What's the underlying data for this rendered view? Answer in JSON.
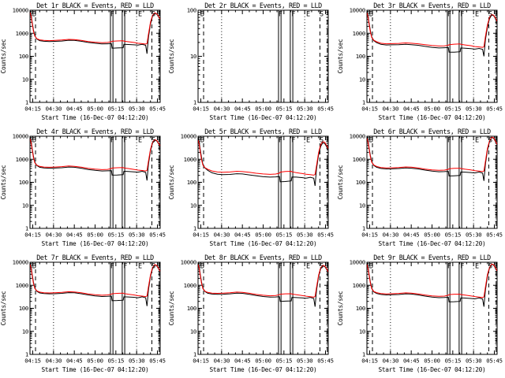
{
  "window": {
    "background": "#ffffff"
  },
  "legend": [
    {
      "name": "Events",
      "color": "#000000"
    },
    {
      "name": "LLD",
      "color": "#ff0000"
    }
  ],
  "axis": {
    "x_label": "Start Time (16-Dec-07 04:12:20)",
    "y_label": "Counts/sec",
    "x_tick_labels": [
      "04:15",
      "04:30",
      "04:45",
      "05:00",
      "05:15",
      "05:30",
      "05:45"
    ],
    "x_tick_minutes": [
      2,
      17,
      32,
      47,
      62,
      77,
      92
    ],
    "x_minor_step_minutes": 5,
    "x_domain_minutes_after_0413": [
      0,
      94
    ],
    "y_scale": "log",
    "grid": false
  },
  "event_flags": [
    {
      "label": "B",
      "letter_minute": 3,
      "line": "dashed",
      "line_minute": 4
    },
    {
      "label": "",
      "letter_minute": 17,
      "line": "dotted",
      "line_minute": 17
    },
    {
      "label": "F",
      "letter_minute": 59.5,
      "line": "double",
      "line_minute": 59
    },
    {
      "label": "F",
      "letter_minute": 68.8,
      "line": "double",
      "line_minute": 67.5
    },
    {
      "label": "",
      "letter_minute": 77,
      "line": "dotted",
      "line_minute": 77
    },
    {
      "label": "E",
      "letter_minute": 79.5,
      "line": "none",
      "line_minute": 79.5
    },
    {
      "label": "S",
      "letter_minute": 89.2,
      "line": "dashed",
      "line_minute": 88
    },
    {
      "label": "",
      "letter_minute": 93.3,
      "line": "dashdot",
      "line_minute": 93.3
    }
  ],
  "chart_x": {
    "unit": "minutes after 04:13 UT",
    "values": [
      0,
      0.8,
      1.6,
      2.5,
      3.5,
      5,
      7,
      10,
      14,
      18,
      23,
      28,
      32,
      37,
      42,
      47,
      52,
      56,
      58.8,
      59.3,
      63,
      67.3,
      67.8,
      71,
      75,
      78,
      81,
      83.5,
      84.5,
      85.5,
      87,
      88.5,
      90,
      91.5,
      93,
      94
    ]
  },
  "chart_data": [
    {
      "id": "det1r",
      "type": "line",
      "title": "Det 1r BLACK = Events, RED = LLD",
      "xlabel": "Start Time (16-Dec-07 04:12:20)",
      "ylabel": "Counts/sec",
      "ylog": true,
      "ylim": [
        1,
        10000
      ],
      "y_ticks": [
        1,
        10,
        100,
        1000,
        10000
      ],
      "series": [
        {
          "name": "Events",
          "color": "#000000",
          "values": [
            9500,
            6500,
            3000,
            1400,
            800,
            560,
            480,
            450,
            440,
            445,
            460,
            500,
            490,
            450,
            400,
            370,
            345,
            350,
            355,
            225,
            230,
            235,
            330,
            325,
            315,
            305,
            330,
            300,
            130,
            650,
            2500,
            5500,
            7400,
            6800,
            5000,
            3900
          ]
        },
        {
          "name": "LLD",
          "color": "#ff0000",
          "values": [
            8000,
            5500,
            2600,
            1200,
            750,
            580,
            520,
            490,
            480,
            490,
            510,
            545,
            530,
            490,
            440,
            410,
            390,
            400,
            430,
            450,
            465,
            470,
            455,
            430,
            400,
            370,
            355,
            340,
            360,
            900,
            3000,
            6000,
            7700,
            7100,
            5300,
            4100
          ]
        }
      ]
    },
    {
      "id": "det2r",
      "type": "line",
      "title": "Det 2r BLACK = Events, RED = LLD",
      "xlabel": "Start Time (16-Dec-07 04:12:20)",
      "ylabel": "Counts/sec",
      "ylog": true,
      "ylim": [
        1,
        100
      ],
      "y_ticks": [
        1,
        10,
        100
      ],
      "series": []
    },
    {
      "id": "det3r",
      "type": "line",
      "title": "Det 3r BLACK = Events, RED = LLD",
      "xlabel": "Start Time (16-Dec-07 04:12:20)",
      "ylabel": "Counts/sec",
      "ylog": true,
      "ylim": [
        1,
        10000
      ],
      "y_ticks": [
        1,
        10,
        100,
        1000,
        10000
      ],
      "series": [
        {
          "name": "Events",
          "color": "#000000",
          "values": [
            9000,
            6000,
            2800,
            1300,
            700,
            480,
            390,
            330,
            310,
            315,
            320,
            330,
            320,
            300,
            270,
            245,
            230,
            235,
            240,
            150,
            152,
            158,
            230,
            225,
            215,
            205,
            220,
            200,
            100,
            500,
            1800,
            4200,
            6200,
            5800,
            4200,
            3100
          ]
        },
        {
          "name": "LLD",
          "color": "#ff0000",
          "values": [
            7800,
            5200,
            2400,
            1100,
            650,
            500,
            430,
            370,
            350,
            355,
            365,
            380,
            370,
            350,
            320,
            295,
            280,
            285,
            300,
            320,
            335,
            345,
            330,
            310,
            290,
            265,
            255,
            245,
            260,
            700,
            2300,
            4800,
            6600,
            6100,
            4500,
            3300
          ]
        }
      ]
    },
    {
      "id": "det4r",
      "type": "line",
      "title": "Det 4r BLACK = Events, RED = LLD",
      "xlabel": "Start Time (16-Dec-07 04:12:20)",
      "ylabel": "Counts/sec",
      "ylog": true,
      "ylim": [
        1,
        10000
      ],
      "y_ticks": [
        1,
        10,
        100,
        1000,
        10000
      ],
      "series": [
        {
          "name": "Events",
          "color": "#000000",
          "values": [
            9300,
            6300,
            2900,
            1350,
            760,
            530,
            450,
            420,
            410,
            415,
            430,
            460,
            450,
            410,
            360,
            330,
            310,
            315,
            320,
            205,
            208,
            215,
            300,
            295,
            285,
            275,
            300,
            270,
            120,
            600,
            2300,
            5000,
            6900,
            6300,
            4600,
            3600
          ]
        },
        {
          "name": "LLD",
          "color": "#ff0000",
          "values": [
            7900,
            5300,
            2500,
            1150,
            700,
            550,
            490,
            460,
            450,
            460,
            480,
            510,
            495,
            455,
            405,
            375,
            355,
            365,
            395,
            415,
            430,
            435,
            420,
            395,
            365,
            340,
            325,
            310,
            330,
            820,
            2700,
            5500,
            7200,
            6600,
            4900,
            3800
          ]
        }
      ]
    },
    {
      "id": "det5r",
      "type": "line",
      "title": "Det 5r BLACK = Events, RED = LLD",
      "xlabel": "Start Time (16-Dec-07 04:12:20)",
      "ylabel": "Counts/sec",
      "ylog": true,
      "ylim": [
        1,
        10000
      ],
      "y_ticks": [
        1,
        10,
        100,
        1000,
        10000
      ],
      "series": [
        {
          "name": "Events",
          "color": "#000000",
          "values": [
            9000,
            5800,
            2600,
            1200,
            620,
            420,
            330,
            260,
            225,
            215,
            220,
            235,
            230,
            210,
            190,
            175,
            168,
            172,
            178,
            105,
            108,
            115,
            170,
            168,
            160,
            152,
            165,
            150,
            70,
            380,
            1500,
            3500,
            5200,
            4800,
            3400,
            2600
          ]
        },
        {
          "name": "LLD",
          "color": "#ff0000",
          "values": [
            6800,
            4600,
            2100,
            950,
            560,
            430,
            370,
            310,
            280,
            272,
            280,
            300,
            292,
            272,
            248,
            230,
            222,
            228,
            250,
            275,
            295,
            300,
            285,
            262,
            242,
            225,
            215,
            205,
            220,
            520,
            1900,
            4200,
            5900,
            5400,
            3800,
            2900
          ]
        }
      ]
    },
    {
      "id": "det6r",
      "type": "line",
      "title": "Det 6r BLACK = Events, RED = LLD",
      "xlabel": "Start Time (16-Dec-07 04:12:20)",
      "ylabel": "Counts/sec",
      "ylog": true,
      "ylim": [
        1,
        10000
      ],
      "y_ticks": [
        1,
        10,
        100,
        1000,
        10000
      ],
      "series": [
        {
          "name": "Events",
          "color": "#000000",
          "values": [
            9800,
            6800,
            3100,
            1450,
            800,
            540,
            450,
            400,
            380,
            385,
            395,
            420,
            410,
            380,
            340,
            305,
            288,
            292,
            298,
            188,
            192,
            198,
            280,
            275,
            265,
            255,
            280,
            250,
            115,
            580,
            2400,
            5600,
            8800,
            8200,
            5600,
            4200
          ]
        },
        {
          "name": "LLD",
          "color": "#ff0000",
          "values": [
            8200,
            5600,
            2700,
            1250,
            740,
            560,
            490,
            440,
            420,
            425,
            440,
            465,
            455,
            420,
            375,
            345,
            330,
            338,
            365,
            390,
            405,
            410,
            395,
            370,
            345,
            320,
            305,
            292,
            310,
            780,
            2900,
            6200,
            9200,
            8600,
            5900,
            4400
          ]
        }
      ]
    },
    {
      "id": "det7r",
      "type": "line",
      "title": "Det 7r BLACK = Events, RED = LLD",
      "xlabel": "Start Time (16-Dec-07 04:12:20)",
      "ylabel": "Counts/sec",
      "ylog": true,
      "ylim": [
        1,
        10000
      ],
      "y_ticks": [
        1,
        10,
        100,
        1000,
        10000
      ],
      "series": [
        {
          "name": "Events",
          "color": "#000000",
          "values": [
            9400,
            6400,
            2950,
            1380,
            780,
            545,
            465,
            435,
            425,
            430,
            445,
            480,
            470,
            430,
            380,
            345,
            325,
            330,
            338,
            215,
            218,
            225,
            315,
            310,
            300,
            288,
            315,
            285,
            125,
            620,
            2400,
            5300,
            7600,
            7000,
            5000,
            3800
          ]
        },
        {
          "name": "LLD",
          "color": "#ff0000",
          "values": [
            8000,
            5400,
            2550,
            1180,
            720,
            565,
            505,
            475,
            465,
            475,
            495,
            525,
            510,
            470,
            420,
            390,
            370,
            380,
            410,
            430,
            448,
            452,
            438,
            410,
            380,
            352,
            338,
            322,
            345,
            850,
            2800,
            5800,
            7900,
            7300,
            5300,
            4000
          ]
        }
      ]
    },
    {
      "id": "det8r",
      "type": "line",
      "title": "Det 8r BLACK = Events, RED = LLD",
      "xlabel": "Start Time (16-Dec-07 04:12:20)",
      "ylabel": "Counts/sec",
      "ylog": true,
      "ylim": [
        1,
        10000
      ],
      "y_ticks": [
        1,
        10,
        100,
        1000,
        10000
      ],
      "series": [
        {
          "name": "Events",
          "color": "#000000",
          "values": [
            9700,
            6600,
            3000,
            1400,
            770,
            530,
            450,
            415,
            405,
            410,
            425,
            455,
            445,
            405,
            358,
            325,
            305,
            310,
            318,
            200,
            204,
            210,
            298,
            292,
            282,
            272,
            298,
            268,
            118,
            590,
            2300,
            5100,
            7100,
            6500,
            4700,
            3600
          ]
        },
        {
          "name": "LLD",
          "color": "#ff0000",
          "values": [
            8100,
            5500,
            2600,
            1200,
            710,
            550,
            490,
            455,
            445,
            455,
            475,
            505,
            490,
            450,
            400,
            370,
            350,
            360,
            390,
            410,
            425,
            430,
            415,
            390,
            360,
            335,
            320,
            305,
            328,
            800,
            2700,
            5600,
            7400,
            6800,
            5000,
            3800
          ]
        }
      ]
    },
    {
      "id": "det9r",
      "type": "line",
      "title": "Det 9r BLACK = Events, RED = LLD",
      "xlabel": "Start Time (16-Dec-07 04:12:20)",
      "ylabel": "Counts/sec",
      "ylog": true,
      "ylim": [
        1,
        10000
      ],
      "y_ticks": [
        1,
        10,
        100,
        1000,
        10000
      ],
      "series": [
        {
          "name": "Events",
          "color": "#000000",
          "values": [
            9600,
            6500,
            3000,
            1400,
            760,
            520,
            440,
            400,
            382,
            388,
            398,
            425,
            415,
            382,
            340,
            308,
            290,
            295,
            302,
            190,
            194,
            200,
            282,
            278,
            268,
            258,
            282,
            252,
            118,
            585,
            2350,
            5400,
            8100,
            7500,
            5300,
            4000
          ]
        },
        {
          "name": "LLD",
          "color": "#ff0000",
          "values": [
            8000,
            5400,
            2600,
            1200,
            700,
            540,
            480,
            440,
            420,
            428,
            442,
            468,
            458,
            422,
            378,
            348,
            332,
            340,
            368,
            392,
            408,
            412,
            398,
            372,
            348,
            322,
            308,
            295,
            315,
            790,
            2900,
            5900,
            8400,
            7800,
            5600,
            4200
          ]
        }
      ]
    }
  ]
}
